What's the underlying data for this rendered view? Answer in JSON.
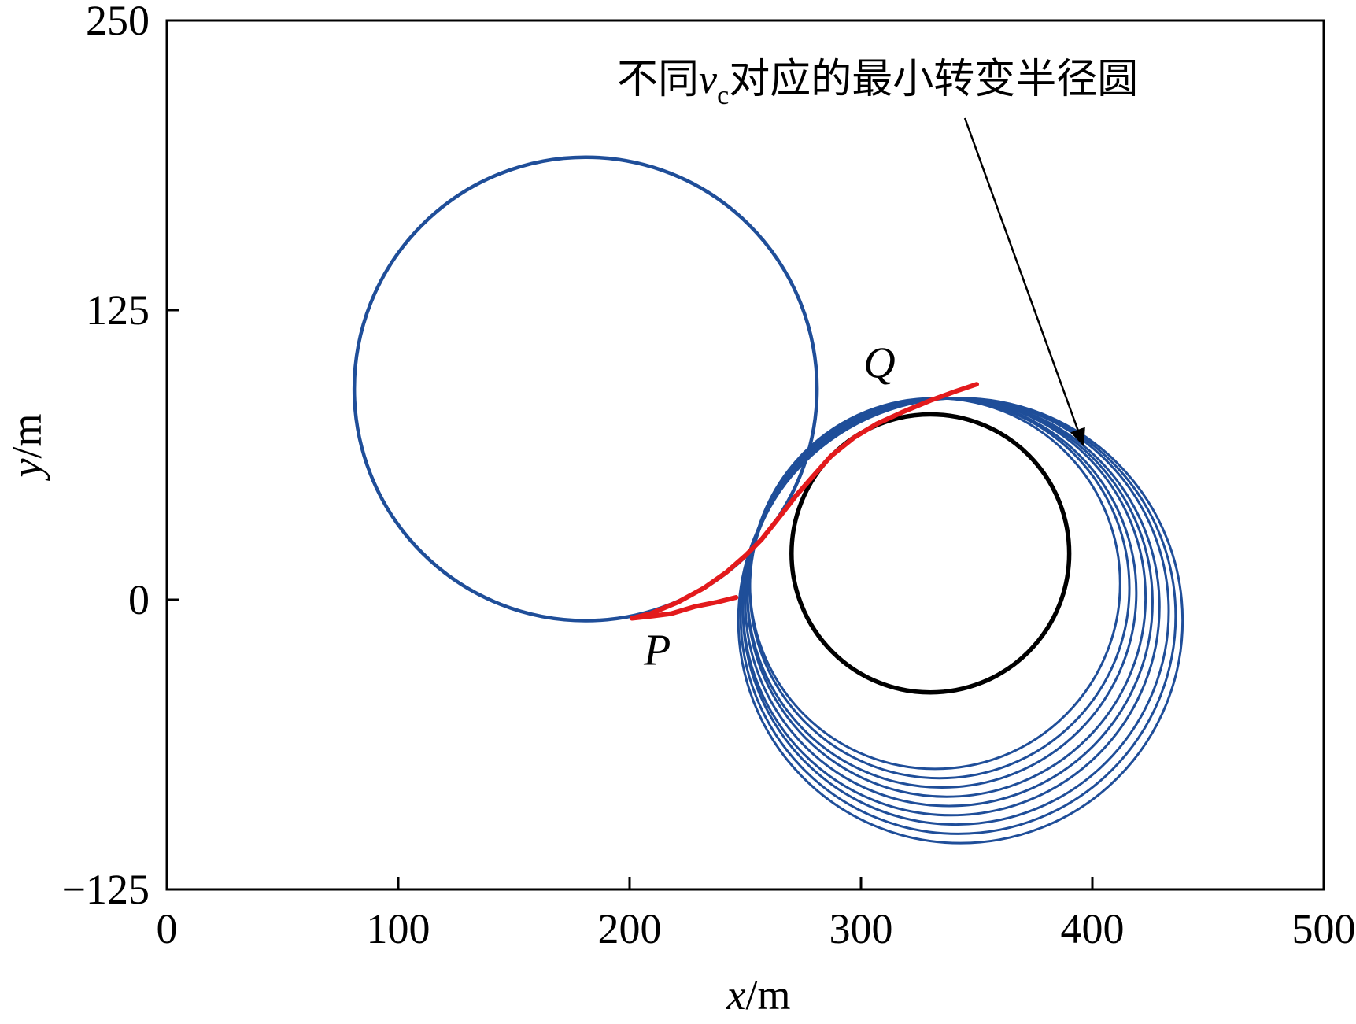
{
  "chart_data": {
    "type": "line",
    "xlabel": {
      "var": "x",
      "unit": "/m"
    },
    "ylabel": {
      "var": "y",
      "unit": "/m"
    },
    "xlim": [
      0,
      500
    ],
    "ylim": [
      -125,
      250
    ],
    "xticks": [
      "0",
      "100",
      "200",
      "300",
      "400",
      "500"
    ],
    "yticks": [
      "−125",
      "0",
      "125",
      "250"
    ],
    "grid": false,
    "annotation": {
      "text_before": "不同",
      "var": "v",
      "subscript": "c",
      "text_after": "对应的最小转变半径圆",
      "arrow_to": [
        396,
        67
      ]
    },
    "point_labels": [
      {
        "text": "Q",
        "x": 308,
        "y": 96
      },
      {
        "text": "P",
        "x": 212,
        "y": -28
      }
    ],
    "series": [
      {
        "role": "large-circle",
        "shape": "circle",
        "center": [
          181,
          91
        ],
        "radius": 100,
        "color": "#1f4e99"
      },
      {
        "role": "min-turning-radius-circles",
        "shape": "circle-family",
        "color": "#1f4e99",
        "circles": [
          {
            "center": [
              332,
              7
            ],
            "radius": 80
          },
          {
            "center": [
              334,
              5
            ],
            "radius": 82
          },
          {
            "center": [
              335,
              3
            ],
            "radius": 84
          },
          {
            "center": [
              337,
              1
            ],
            "radius": 86
          },
          {
            "center": [
              338,
              -1
            ],
            "radius": 88
          },
          {
            "center": [
              339,
              -3
            ],
            "radius": 90
          },
          {
            "center": [
              341,
              -5
            ],
            "radius": 92
          },
          {
            "center": [
              342,
              -7
            ],
            "radius": 94
          },
          {
            "center": [
              343,
              -9
            ],
            "radius": 96
          }
        ]
      },
      {
        "role": "target-circle",
        "shape": "circle",
        "center": [
          330,
          20
        ],
        "radius": 60,
        "color": "#000000"
      },
      {
        "role": "path",
        "shape": "polyline",
        "color": "#e31a1c",
        "points": [
          [
            246,
            1
          ],
          [
            238,
            -1
          ],
          [
            228,
            -3
          ],
          [
            218,
            -6
          ],
          [
            210,
            -7
          ],
          [
            201,
            -8
          ],
          [
            209,
            -6
          ],
          [
            221,
            -1
          ],
          [
            232,
            5
          ],
          [
            242,
            12
          ],
          [
            250,
            19
          ],
          [
            257,
            26
          ],
          [
            265,
            36
          ],
          [
            272,
            45
          ],
          [
            279,
            53
          ],
          [
            287,
            62
          ],
          [
            297,
            70
          ],
          [
            307,
            76
          ],
          [
            318,
            81
          ],
          [
            330,
            86
          ],
          [
            341,
            90
          ],
          [
            350,
            93
          ]
        ]
      }
    ]
  }
}
